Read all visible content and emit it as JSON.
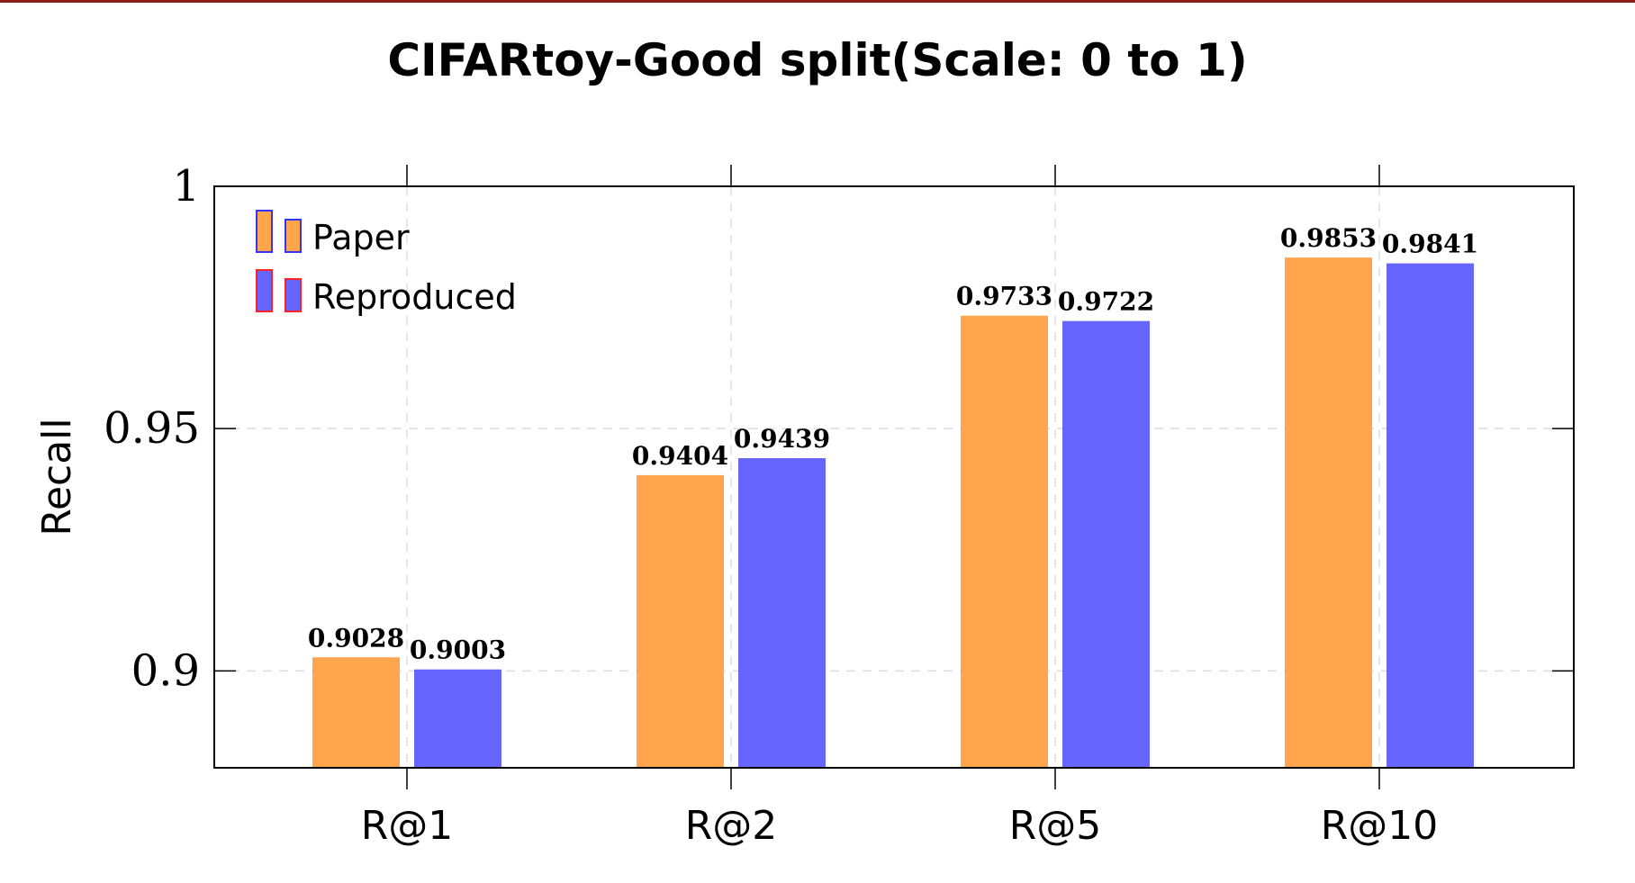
{
  "chart_data": {
    "type": "bar",
    "title": "CIFARtoy-Good split(Scale: 0 to 1)",
    "xlabel": "",
    "ylabel": "Recall",
    "categories": [
      "R@1",
      "R@2",
      "R@5",
      "R@10"
    ],
    "series": [
      {
        "name": "Paper",
        "values": [
          0.9028,
          0.9404,
          0.9733,
          0.9853
        ],
        "labels": [
          "0.9028",
          "0.9404",
          "0.9733",
          "0.9853"
        ],
        "fill": "#ffa64d",
        "legend_border": "#3333ff"
      },
      {
        "name": "Reproduced",
        "values": [
          0.9003,
          0.9439,
          0.9722,
          0.9841
        ],
        "labels": [
          "0.9003",
          "0.9439",
          "0.9722",
          "0.9841"
        ],
        "fill": "#6666ff",
        "legend_border": "#ff2222"
      }
    ],
    "ylim": [
      0.88,
      1.0
    ],
    "yticks": [
      0.9,
      0.95,
      1.0
    ],
    "ytick_labels": [
      "0.9",
      "0.95",
      "1"
    ],
    "grid": true,
    "legend_position": "top-left"
  }
}
